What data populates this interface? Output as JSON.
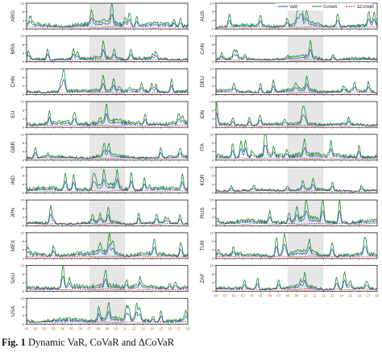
{
  "chart_data": {
    "type": "line",
    "layout": "two-column grid of country panels",
    "legend": {
      "placement": "top-right of first right-column panel",
      "entries": [
        {
          "label": "VaR",
          "color": "#2a4fc4"
        },
        {
          "label": "CoVaR",
          "color": "#1a8a2a"
        },
        {
          "label": "ΔCoVaR",
          "color": "#d42020"
        }
      ]
    },
    "series_colors": {
      "var": "#2a4fc4",
      "covar": "#1a8a2a",
      "dcovar": "#d42020"
    },
    "shaded_region_color": "#e6e6e6",
    "ylim": [
      0,
      12
    ],
    "y_ticks": [
      "0",
      "4",
      "8",
      "12"
    ],
    "x_ticks": [
      "00",
      "01",
      "02",
      "03",
      "04",
      "05",
      "06",
      "07",
      "08",
      "09",
      "10",
      "11",
      "12",
      "13",
      "14",
      "15",
      "16",
      "17",
      "18"
    ],
    "panels": [
      {
        "country": "ARG",
        "column": 0,
        "profile": 1,
        "shade": [
          7,
          11
        ],
        "yscale": 1.0
      },
      {
        "country": "BRA",
        "column": 0,
        "profile": 2,
        "shade": [
          7,
          11
        ],
        "yscale": 0.7
      },
      {
        "country": "CHN",
        "column": 0,
        "profile": 3,
        "shade": [
          7,
          11
        ],
        "yscale": 0.8
      },
      {
        "country": "EU",
        "column": 0,
        "profile": 4,
        "shade": [
          7,
          11
        ],
        "yscale": 1.0
      },
      {
        "country": "GBR",
        "column": 0,
        "profile": 5,
        "shade": [
          7,
          11
        ],
        "yscale": 0.7
      },
      {
        "country": "IND",
        "column": 0,
        "profile": 6,
        "shade": [
          7,
          11
        ],
        "yscale": 1.0
      },
      {
        "country": "JPN",
        "column": 0,
        "profile": 7,
        "shade": [
          7,
          11
        ],
        "yscale": 0.6
      },
      {
        "country": "MEX",
        "column": 0,
        "profile": 8,
        "shade": [
          7,
          11
        ],
        "yscale": 1.0
      },
      {
        "country": "SAU",
        "column": 0,
        "profile": 9,
        "shade": [
          7,
          11
        ],
        "yscale": 1.0
      },
      {
        "country": "USA",
        "column": 0,
        "profile": 10,
        "shade": [
          7,
          11
        ],
        "yscale": 0.9
      },
      {
        "country": "AUS",
        "column": 1,
        "profile": 11,
        "shade": [
          8,
          12
        ],
        "yscale": 0.8
      },
      {
        "country": "CAN",
        "column": 1,
        "profile": 12,
        "shade": [
          8,
          12
        ],
        "yscale": 0.7
      },
      {
        "country": "DEU",
        "column": 1,
        "profile": 13,
        "shade": [
          8,
          12
        ],
        "yscale": 0.8
      },
      {
        "country": "IDN",
        "column": 1,
        "profile": 14,
        "shade": [
          8,
          12
        ],
        "yscale": 0.7
      },
      {
        "country": "ITA",
        "column": 1,
        "profile": 15,
        "shade": [
          8,
          12
        ],
        "yscale": 1.0
      },
      {
        "country": "KOR",
        "column": 1,
        "profile": 16,
        "shade": [
          8,
          12
        ],
        "yscale": 0.6
      },
      {
        "country": "RUS",
        "column": 1,
        "profile": 17,
        "shade": [
          8,
          12
        ],
        "yscale": 1.0
      },
      {
        "country": "TUR",
        "column": 1,
        "profile": 18,
        "shade": [
          8,
          12
        ],
        "yscale": 0.9
      },
      {
        "country": "ZAF",
        "column": 1,
        "profile": 19,
        "shade": [
          8,
          12
        ],
        "yscale": 0.7
      }
    ]
  },
  "caption": {
    "label": "Fig. 1",
    "text": "Dynamic VaR, CoVaR and ΔCoVaR"
  }
}
